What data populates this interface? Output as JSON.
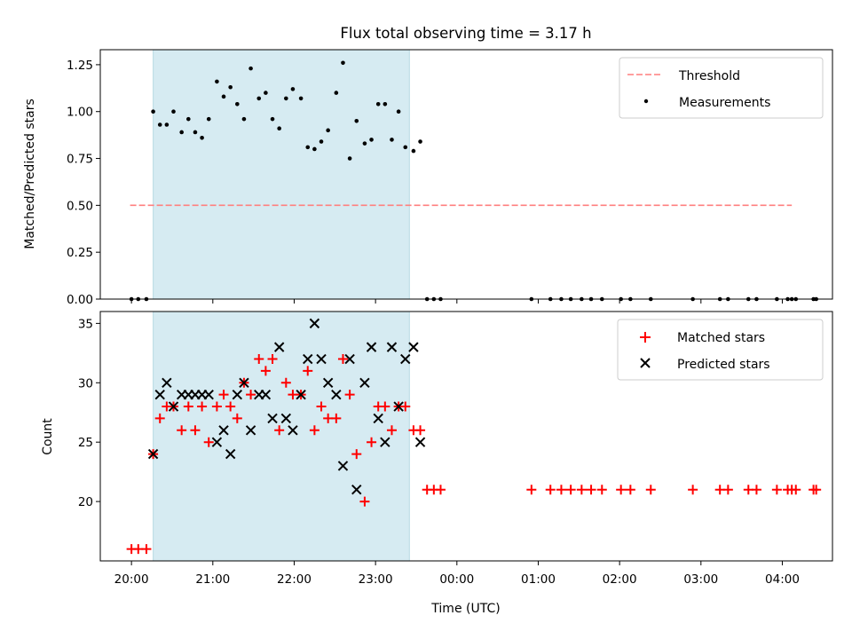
{
  "chart_data": [
    {
      "type": "scatter",
      "title": "Flux total observing time = 3.17 h",
      "xlabel": "",
      "ylabel": "Matched/Predicted stars",
      "xlim": [
        "19:37",
        "04:37"
      ],
      "ylim": [
        0,
        1.33
      ],
      "yticks": [
        "0.00",
        "0.25",
        "0.50",
        "0.75",
        "1.00",
        "1.25"
      ],
      "shaded_interval": [
        "20:16",
        "23:25"
      ],
      "legend": {
        "placement": "top-right",
        "entries": [
          "Threshold",
          "Measurements"
        ]
      },
      "threshold": {
        "name": "Threshold",
        "value": 0.5,
        "x_range": [
          "19:59",
          "04:07"
        ],
        "color": "#ff7f7f"
      },
      "series": [
        {
          "name": "Measurements",
          "x": [
            "20:00",
            "20:05",
            "20:11",
            "20:16",
            "20:21",
            "20:26",
            "20:31",
            "20:37",
            "20:42",
            "20:47",
            "20:52",
            "20:57",
            "21:03",
            "21:08",
            "21:13",
            "21:18",
            "21:23",
            "21:28",
            "21:34",
            "21:39",
            "21:44",
            "21:49",
            "21:54",
            "21:59",
            "22:05",
            "22:10",
            "22:15",
            "22:20",
            "22:25",
            "22:31",
            "22:36",
            "22:41",
            "22:46",
            "22:52",
            "22:57",
            "23:02",
            "23:07",
            "23:12",
            "23:17",
            "23:22",
            "23:28",
            "23:33",
            "23:38",
            "23:43",
            "23:48",
            "00:55",
            "01:09",
            "01:17",
            "01:24",
            "01:32",
            "01:39",
            "01:47",
            "02:01",
            "02:08",
            "02:23",
            "02:54",
            "03:14",
            "03:20",
            "03:35",
            "03:41",
            "03:56",
            "04:04",
            "04:07",
            "04:10",
            "04:23",
            "04:25"
          ],
          "y": [
            0,
            0,
            0,
            1.0,
            0.93,
            0.93,
            1.0,
            0.89,
            0.96,
            0.89,
            0.86,
            0.96,
            1.16,
            1.08,
            1.13,
            1.04,
            0.96,
            1.23,
            1.07,
            1.1,
            0.96,
            0.91,
            1.07,
            1.12,
            1.07,
            0.81,
            0.8,
            0.84,
            0.9,
            1.1,
            1.26,
            0.75,
            0.95,
            0.83,
            0.85,
            1.04,
            1.04,
            0.85,
            1.0,
            0.81,
            0.79,
            0.84,
            0,
            0,
            0,
            0,
            0,
            0,
            0,
            0,
            0,
            0,
            0,
            0,
            0,
            0,
            0,
            0,
            0,
            0,
            0,
            0,
            0,
            0,
            0,
            0
          ],
          "color": "#000000"
        }
      ]
    },
    {
      "type": "scatter",
      "title": "",
      "xlabel": "Time (UTC)",
      "ylabel": "Count",
      "xlim": [
        "19:37",
        "04:37"
      ],
      "ylim": [
        15,
        36
      ],
      "yticks": [
        "20",
        "25",
        "30",
        "35"
      ],
      "xticks": [
        "20:00",
        "21:00",
        "22:00",
        "23:00",
        "00:00",
        "01:00",
        "02:00",
        "03:00",
        "04:00"
      ],
      "shaded_interval": [
        "20:16",
        "23:25"
      ],
      "legend": {
        "placement": "top-right",
        "entries": [
          "Matched stars",
          "Predicted stars"
        ]
      },
      "series": [
        {
          "name": "Matched stars",
          "marker": "plus",
          "color": "#ff0000",
          "x": [
            "20:00",
            "20:05",
            "20:11",
            "20:16",
            "20:21",
            "20:26",
            "20:31",
            "20:37",
            "20:42",
            "20:47",
            "20:52",
            "20:57",
            "21:03",
            "21:08",
            "21:13",
            "21:18",
            "21:23",
            "21:28",
            "21:34",
            "21:39",
            "21:44",
            "21:49",
            "21:54",
            "21:59",
            "22:05",
            "22:10",
            "22:15",
            "22:20",
            "22:25",
            "22:31",
            "22:36",
            "22:41",
            "22:46",
            "22:52",
            "22:57",
            "23:02",
            "23:07",
            "23:12",
            "23:17",
            "23:22",
            "23:28",
            "23:33",
            "23:38",
            "23:43",
            "23:48",
            "00:55",
            "01:09",
            "01:17",
            "01:24",
            "01:32",
            "01:39",
            "01:47",
            "02:01",
            "02:08",
            "02:23",
            "02:54",
            "03:14",
            "03:20",
            "03:35",
            "03:41",
            "03:56",
            "04:04",
            "04:07",
            "04:10",
            "04:23",
            "04:25"
          ],
          "y": [
            16,
            16,
            16,
            24,
            27,
            28,
            28,
            26,
            28,
            26,
            28,
            25,
            28,
            29,
            28,
            27,
            30,
            29,
            32,
            31,
            32,
            26,
            30,
            29,
            29,
            31,
            26,
            28,
            27,
            27,
            32,
            29,
            24,
            20,
            25,
            28,
            28,
            26,
            28,
            28,
            26,
            26,
            21,
            21,
            21,
            21,
            21,
            21,
            21,
            21,
            21,
            21,
            21,
            21,
            21,
            21,
            21,
            21,
            21,
            21,
            21,
            21,
            21,
            21,
            21,
            21
          ]
        },
        {
          "name": "Predicted stars",
          "marker": "x",
          "color": "#000000",
          "x": [
            "20:16",
            "20:21",
            "20:26",
            "20:31",
            "20:37",
            "20:42",
            "20:47",
            "20:52",
            "20:57",
            "21:03",
            "21:08",
            "21:13",
            "21:18",
            "21:23",
            "21:28",
            "21:34",
            "21:39",
            "21:44",
            "21:49",
            "21:54",
            "21:59",
            "22:05",
            "22:10",
            "22:15",
            "22:20",
            "22:25",
            "22:31",
            "22:36",
            "22:41",
            "22:46",
            "22:52",
            "22:57",
            "23:02",
            "23:07",
            "23:12",
            "23:17",
            "23:22",
            "23:28",
            "23:33"
          ],
          "y": [
            24,
            29,
            30,
            28,
            29,
            29,
            29,
            29,
            29,
            25,
            26,
            24,
            29,
            30,
            26,
            29,
            29,
            27,
            33,
            27,
            26,
            29,
            32,
            35,
            32,
            30,
            29,
            23,
            32,
            21,
            30,
            33,
            27,
            25,
            33,
            28,
            32,
            33,
            25
          ]
        }
      ]
    }
  ]
}
